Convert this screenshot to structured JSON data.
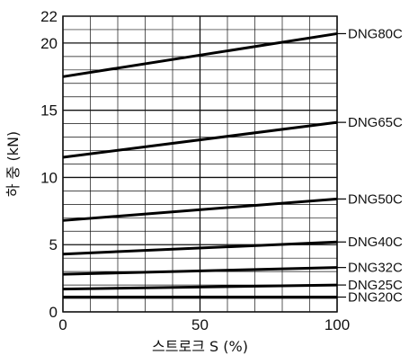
{
  "chart_data": {
    "type": "line",
    "xlabel": "스트로크 S (%)",
    "ylabel": "하  중 (kN)",
    "xlim": [
      0,
      100
    ],
    "ylim": [
      0,
      22
    ],
    "x_ticks": [
      "0",
      "50",
      "100"
    ],
    "y_ticks": [
      "0",
      "5",
      "10",
      "15",
      "20",
      "22"
    ],
    "x_ticks_values": [
      0,
      50,
      100
    ],
    "y_ticks_values": [
      0,
      5,
      10,
      15,
      20,
      22
    ],
    "grid": true,
    "legend": "right",
    "series": [
      {
        "name": "DNG80C",
        "x": [
          0,
          100
        ],
        "values": [
          17.5,
          20.7
        ]
      },
      {
        "name": "DNG65C",
        "x": [
          0,
          100
        ],
        "values": [
          11.5,
          14.1
        ]
      },
      {
        "name": "DNG50C",
        "x": [
          0,
          100
        ],
        "values": [
          6.8,
          8.4
        ]
      },
      {
        "name": "DNG40C",
        "x": [
          0,
          100
        ],
        "values": [
          4.3,
          5.2
        ]
      },
      {
        "name": "DNG32C",
        "x": [
          0,
          100
        ],
        "values": [
          2.8,
          3.3
        ]
      },
      {
        "name": "DNG25C",
        "x": [
          0,
          100
        ],
        "values": [
          1.7,
          2.0
        ]
      },
      {
        "name": "DNG20C",
        "x": [
          0,
          100
        ],
        "values": [
          1.1,
          1.1
        ]
      }
    ]
  }
}
